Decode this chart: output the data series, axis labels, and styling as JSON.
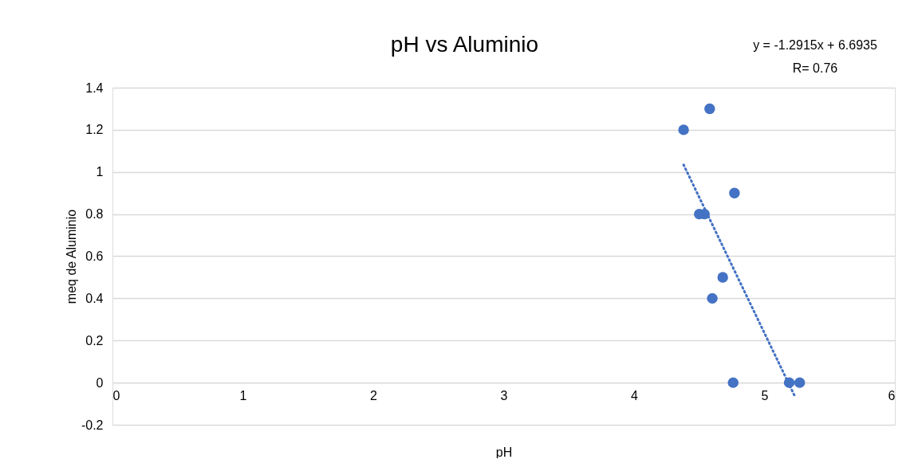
{
  "chart_data": {
    "type": "scatter",
    "title": "pH vs Aluminio",
    "xlabel": "pH",
    "ylabel": "meq de Aluminio",
    "x": [
      4.38,
      4.58,
      4.77,
      4.5,
      4.54,
      4.68,
      4.6,
      4.76,
      5.19,
      5.27
    ],
    "series": [
      {
        "color": "#4472c4",
        "marker": "circle",
        "values": [
          1.2,
          1.3,
          0.9,
          0.8,
          0.8,
          0.5,
          0.4,
          0,
          0,
          0
        ]
      },
      {
        "type": "line",
        "color": "#4472c4",
        "marker": "none",
        "line_style": "dotted",
        "x": [
          4.38,
          5.23
        ],
        "values": [
          1.034,
          -0.061
        ]
      }
    ],
    "xlim": [
      0,
      6
    ],
    "xticks": [
      0,
      1,
      2,
      3,
      4,
      5,
      6
    ],
    "ylim": [
      -0.2,
      1.4
    ],
    "yticks": [
      -0.2,
      0,
      0.2,
      0.4,
      0.6,
      0.8,
      1,
      1.2,
      1.4
    ],
    "grid": "y",
    "annotations": [
      "y = -1.2915x + 6.6935",
      "R= 0.76"
    ]
  }
}
